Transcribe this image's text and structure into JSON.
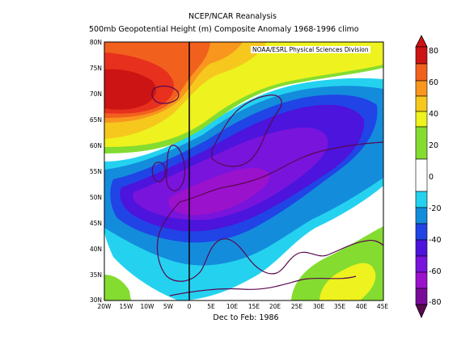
{
  "header": {
    "title": "NCEP/NCAR Reanalysis",
    "subtitle": "500mb Geopotential Height (m) Composite Anomaly 1968-1996 climo"
  },
  "map": {
    "credit": "NOAA/ESRL Physical Sciences Division",
    "period_label": "Dec to Feb: 1986",
    "lat_labels": [
      "80N",
      "75N",
      "70N",
      "65N",
      "60N",
      "55N",
      "50N",
      "45N",
      "40N",
      "35N",
      "30N"
    ],
    "lon_labels": [
      "20W",
      "15W",
      "10W",
      "5W",
      "0",
      "5E",
      "10E",
      "15E",
      "20E",
      "25E",
      "30E",
      "35E",
      "40E",
      "45E"
    ],
    "colors": {
      "c80": "#cc1414",
      "c70": "#e8301e",
      "c60": "#f2601e",
      "c50": "#f8961e",
      "c40": "#f6c81e",
      "c30": "#eef21e",
      "c20": "#84dc30",
      "c0": "#ffffff",
      "n10": "#24d2f0",
      "n20": "#148cdc",
      "n30": "#2044e6",
      "n40": "#4c14dc",
      "n50": "#7814dc",
      "n60": "#9a12cc",
      "n70": "#7a0c9a",
      "coast": "#5a0850"
    }
  },
  "colorbar": {
    "labels": [
      "80",
      "60",
      "40",
      "20",
      "0",
      "-20",
      "-40",
      "-60",
      "-80"
    ]
  }
}
